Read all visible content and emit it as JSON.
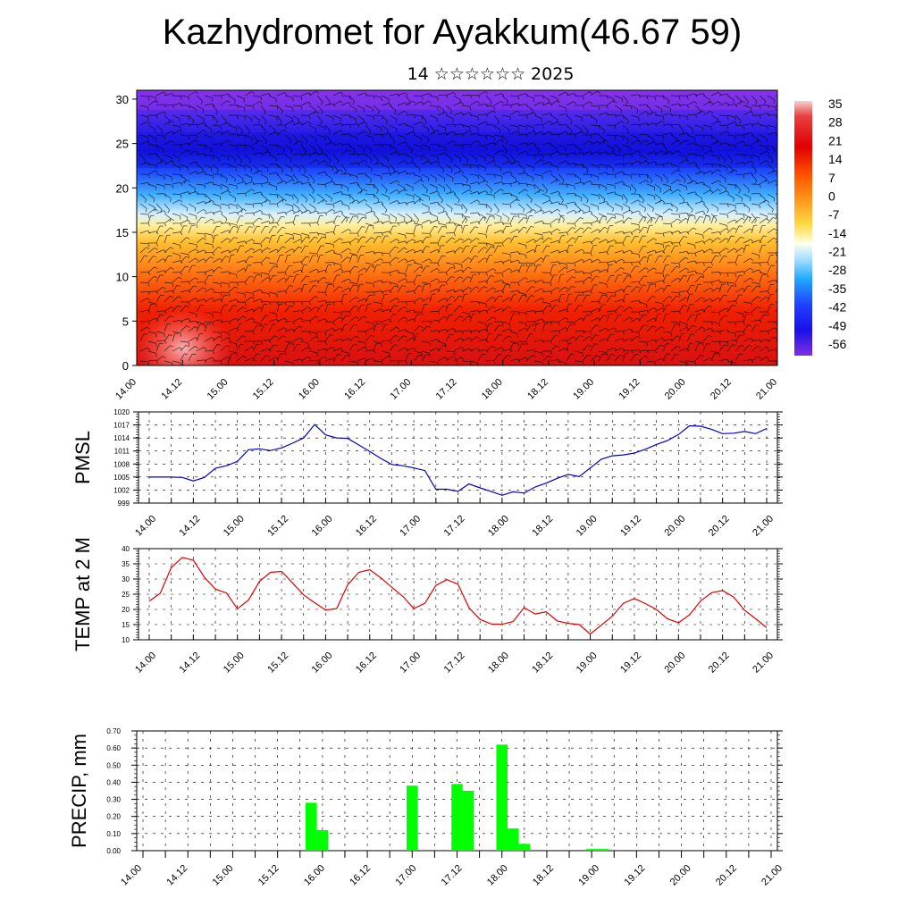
{
  "title": "Kazhydromet for Ayakkum(46.67 59)",
  "subtitle": "14 ☆☆☆☆☆☆ 2025",
  "time_ticks": [
    "14.00",
    "14.12",
    "15.00",
    "15.12",
    "16.00",
    "16.12",
    "17.00",
    "17.12",
    "18.00",
    "18.12",
    "19.00",
    "19.12",
    "20.00",
    "20.12",
    "21.00"
  ],
  "colors": {
    "pmsl": "#0000cc",
    "temp": "#e00000",
    "precip": "#00ff00",
    "grid": "#000000"
  },
  "chart_data": [
    {
      "type": "heatmap",
      "name_hint": "cross-section",
      "ylim": [
        0,
        31
      ],
      "y_ticks": [
        "0",
        "5",
        "10",
        "15",
        "20",
        "25",
        "30"
      ],
      "colorbar_labels": [
        "35",
        "28",
        "21",
        "14",
        "7",
        "0",
        "-7",
        "-14",
        "-21",
        "-28",
        "-35",
        "-42",
        "-49",
        "-56"
      ],
      "colorbar_range": [
        -60,
        38
      ],
      "wind_barbs": true
    },
    {
      "type": "line",
      "ylabel": "PMSL",
      "ylim": [
        999,
        1020
      ],
      "y_ticks": [
        "999",
        "1002",
        "1005",
        "1008",
        "1011",
        "1014",
        "1017",
        "1020"
      ],
      "x": [
        0,
        3,
        6,
        9,
        12,
        15,
        18,
        21,
        24,
        27,
        30,
        33,
        36,
        39,
        42,
        45,
        48,
        51,
        54,
        57,
        60,
        63,
        66,
        69,
        72,
        75,
        78,
        81,
        84,
        87,
        90,
        93,
        96,
        99,
        102,
        105,
        108,
        111,
        114,
        117,
        120,
        123,
        126,
        129,
        132,
        135,
        138,
        141,
        144,
        147,
        150,
        153,
        156,
        159,
        162,
        165,
        168
      ],
      "values": [
        1005,
        1005,
        1005,
        1004.9,
        1004.1,
        1004.9,
        1007,
        1007.6,
        1008.6,
        1011.3,
        1011.5,
        1011.1,
        1011.7,
        1012.8,
        1014,
        1017.1,
        1014.7,
        1014,
        1013.9,
        1012.4,
        1010.9,
        1009.3,
        1007.9,
        1007.6,
        1007.1,
        1006.5,
        1002.2,
        1002.2,
        1001.7,
        1003.4,
        1002.5,
        1001.7,
        1000.8,
        1001.6,
        1001.3,
        1002.7,
        1003.6,
        1004.7,
        1005.6,
        1005.1,
        1007.1,
        1009.1,
        1009.9,
        1010.1,
        1010.5,
        1011.4,
        1012.5,
        1013.4,
        1014.8,
        1016.8,
        1016.7,
        1016,
        1015,
        1015.1,
        1015.5,
        1015,
        1016.2
      ]
    },
    {
      "type": "line",
      "ylabel": "TEMP at 2 M",
      "ylim": [
        10,
        40
      ],
      "y_ticks": [
        "10",
        "15",
        "20",
        "25",
        "30",
        "35",
        "40"
      ],
      "x": [
        0,
        3,
        6,
        9,
        12,
        15,
        18,
        21,
        24,
        27,
        30,
        33,
        36,
        39,
        42,
        45,
        48,
        51,
        54,
        57,
        60,
        63,
        66,
        69,
        72,
        75,
        78,
        81,
        84,
        87,
        90,
        93,
        96,
        99,
        102,
        105,
        108,
        111,
        114,
        117,
        120,
        123,
        126,
        129,
        132,
        135,
        138,
        141,
        144,
        147,
        150,
        153,
        156,
        159,
        162,
        165,
        168
      ],
      "values": [
        22.7,
        25.3,
        33.8,
        37.1,
        36.2,
        30.6,
        26.7,
        25.4,
        20.2,
        23.1,
        29.2,
        32.2,
        32.5,
        28.7,
        24.8,
        22.2,
        19.8,
        20.3,
        28.1,
        32.2,
        33.1,
        30.4,
        27.3,
        24.3,
        20.3,
        22,
        27.9,
        29.8,
        28.3,
        20.6,
        16.7,
        15.2,
        15.1,
        16,
        20.6,
        18.5,
        19.2,
        16.2,
        15.4,
        15,
        11.9,
        14.8,
        17.8,
        22,
        23.6,
        21.9,
        20,
        16.9,
        15.6,
        18.2,
        22.8,
        25.5,
        26.2,
        24.1,
        19.7,
        16.9,
        14
      ]
    },
    {
      "type": "bar",
      "ylabel": "PRECIP, mm",
      "ylim": [
        0,
        0.7
      ],
      "y_ticks": [
        "0.00",
        "0.10",
        "0.20",
        "0.30",
        "0.40",
        "0.50",
        "0.60",
        "0.70"
      ],
      "bars": [
        {
          "t": 45,
          "value": 0.28
        },
        {
          "t": 48,
          "value": 0.12
        },
        {
          "t": 72,
          "value": 0.38
        },
        {
          "t": 84,
          "value": 0.39
        },
        {
          "t": 87,
          "value": 0.35
        },
        {
          "t": 96,
          "value": 0.62
        },
        {
          "t": 99,
          "value": 0.13
        },
        {
          "t": 102,
          "value": 0.04
        },
        {
          "t": 120,
          "value": 0.01
        },
        {
          "t": 123,
          "value": 0.01
        }
      ]
    }
  ]
}
